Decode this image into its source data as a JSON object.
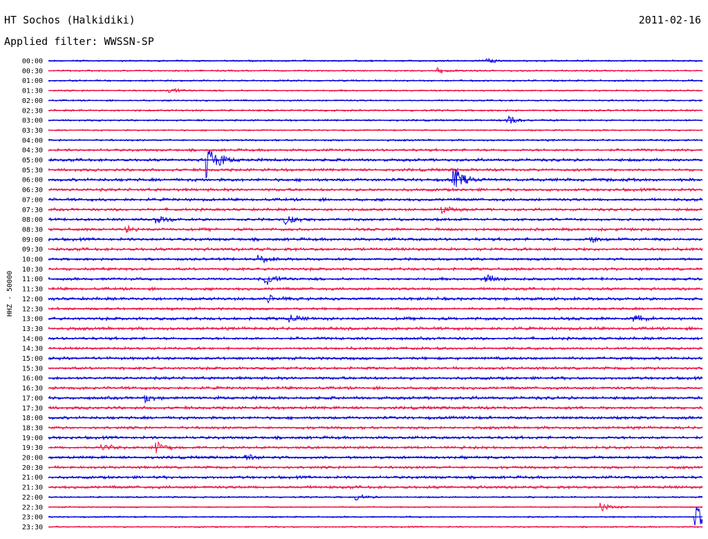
{
  "header": {
    "station": "HT Sochos (Halkidiki)",
    "date": "2011-02-16",
    "filter": "Applied filter: WWSSN-SP"
  },
  "chart_data": {
    "type": "line",
    "title": "HT Sochos (Halkidiki)",
    "ylabel": "HHZ - 50000",
    "colors": [
      "#0000dd",
      "#ee1144"
    ],
    "rows": [
      "00:00",
      "00:30",
      "01:00",
      "01:30",
      "02:00",
      "02:30",
      "03:00",
      "03:30",
      "04:00",
      "04:30",
      "05:00",
      "05:30",
      "06:00",
      "06:30",
      "07:00",
      "07:30",
      "08:00",
      "08:30",
      "09:00",
      "09:30",
      "10:00",
      "10:30",
      "11:00",
      "11:30",
      "12:00",
      "12:30",
      "13:00",
      "13:30",
      "14:00",
      "14:30",
      "15:00",
      "15:30",
      "16:00",
      "16:30",
      "17:00",
      "17:30",
      "18:00",
      "18:30",
      "19:00",
      "19:30",
      "20:00",
      "20:30",
      "21:00",
      "21:30",
      "22:00",
      "22:30",
      "23:00",
      "23:30"
    ],
    "events": [
      {
        "row": "00:00",
        "minute": 20.0,
        "amplitude": 0.35
      },
      {
        "row": "00:30",
        "minute": 17.8,
        "amplitude": 0.35
      },
      {
        "row": "01:30",
        "minute": 5.5,
        "amplitude": 0.4
      },
      {
        "row": "03:00",
        "minute": 21.0,
        "amplitude": 0.6
      },
      {
        "row": "05:00",
        "minute": 7.2,
        "amplitude": 3.0
      },
      {
        "row": "06:00",
        "minute": 18.5,
        "amplitude": 1.8
      },
      {
        "row": "07:30",
        "minute": 18.0,
        "amplitude": 0.5
      },
      {
        "row": "08:00",
        "minute": 4.9,
        "amplitude": 0.6
      },
      {
        "row": "08:00",
        "minute": 10.8,
        "amplitude": 0.8
      },
      {
        "row": "08:30",
        "minute": 3.5,
        "amplitude": 0.4
      },
      {
        "row": "09:00",
        "minute": 24.8,
        "amplitude": 0.4
      },
      {
        "row": "10:00",
        "minute": 9.6,
        "amplitude": 0.6
      },
      {
        "row": "11:00",
        "minute": 9.9,
        "amplitude": 1.0
      },
      {
        "row": "11:00",
        "minute": 20.0,
        "amplitude": 0.6
      },
      {
        "row": "12:00",
        "minute": 10.0,
        "amplitude": 0.4
      },
      {
        "row": "13:00",
        "minute": 11.0,
        "amplitude": 0.6
      },
      {
        "row": "13:00",
        "minute": 26.8,
        "amplitude": 0.6
      },
      {
        "row": "17:00",
        "minute": 4.4,
        "amplitude": 0.5
      },
      {
        "row": "19:30",
        "minute": 2.4,
        "amplitude": 0.6
      },
      {
        "row": "19:30",
        "minute": 4.9,
        "amplitude": 0.8
      },
      {
        "row": "20:00",
        "minute": 9.0,
        "amplitude": 0.4
      },
      {
        "row": "22:00",
        "minute": 14.0,
        "amplitude": 0.4
      },
      {
        "row": "22:30",
        "minute": 25.3,
        "amplitude": 0.6
      },
      {
        "row": "23:00",
        "minute": 29.6,
        "amplitude": 2.2
      }
    ]
  }
}
